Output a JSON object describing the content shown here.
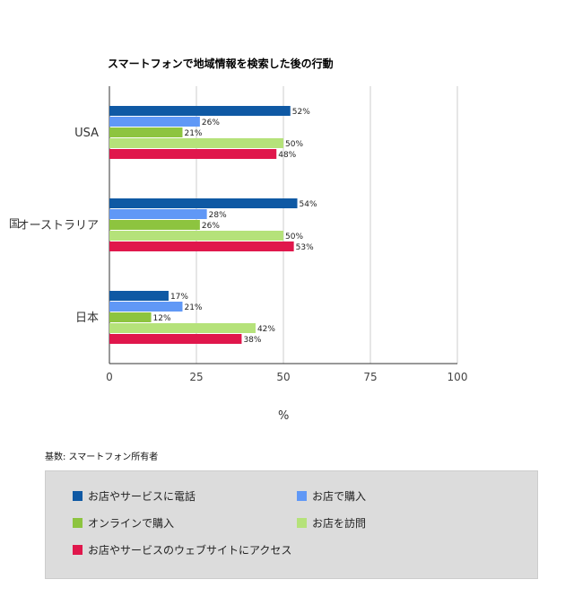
{
  "chart_data": {
    "type": "bar",
    "orientation": "horizontal",
    "title": "スマートフォンで地域情報を検索した後の行動",
    "ylabel": "国",
    "xlabel": "%",
    "xlim": [
      0,
      100
    ],
    "xticks": [
      "0",
      "25",
      "50",
      "75",
      "100"
    ],
    "grid": true,
    "categories": [
      "USA",
      "オーストラリア",
      "日本"
    ],
    "series": [
      {
        "name": "お店やサービスに電話",
        "color": "#0f59a4",
        "values": [
          52,
          54,
          17
        ],
        "labels": [
          "52%",
          "54%",
          "17%"
        ]
      },
      {
        "name": "お店で購入",
        "color": "#6098f6",
        "values": [
          26,
          28,
          21
        ],
        "labels": [
          "26%",
          "28%",
          "21%"
        ]
      },
      {
        "name": "オンラインで購入",
        "color": "#8dc43f",
        "values": [
          21,
          26,
          12
        ],
        "labels": [
          "21%",
          "26%",
          "12%"
        ]
      },
      {
        "name": "お店を訪問",
        "color": "#b5e27a",
        "values": [
          50,
          50,
          42
        ],
        "labels": [
          "50%",
          "50%",
          "42%"
        ]
      },
      {
        "name": "お店やサービスのウェブサイトにアクセス",
        "color": "#e0174c",
        "values": [
          48,
          53,
          38
        ],
        "labels": [
          "48%",
          "53%",
          "38%"
        ]
      }
    ],
    "legend_position": "bottom",
    "note": "基数: スマートフォン所有者"
  }
}
